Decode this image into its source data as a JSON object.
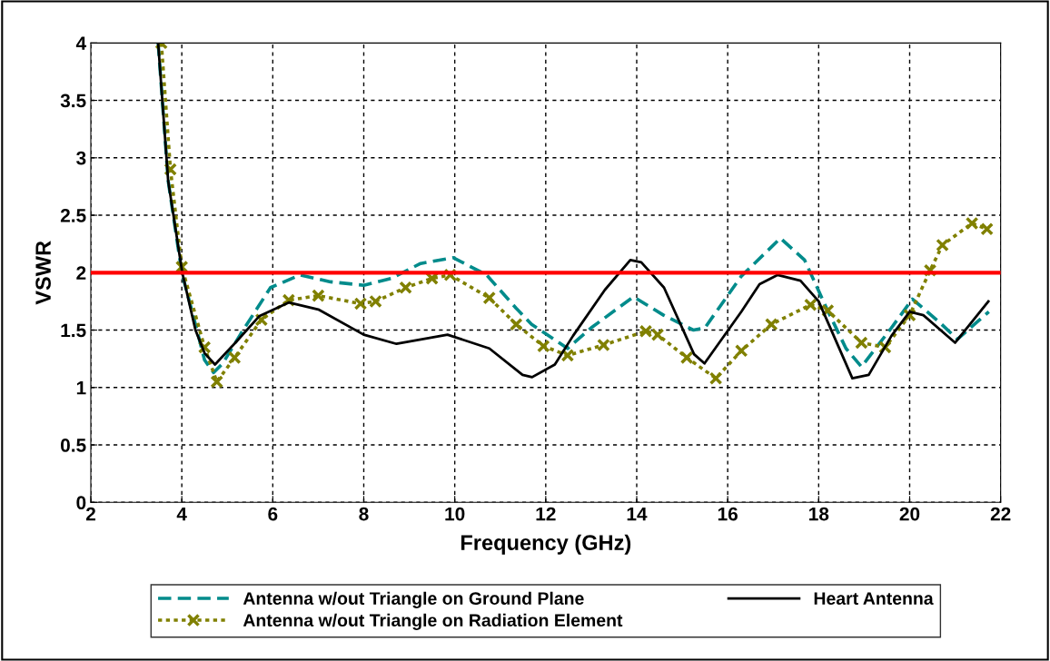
{
  "chart_data": {
    "type": "line",
    "xlabel": "Frequency (GHz)",
    "ylabel": "VSWR",
    "xlim": [
      2,
      22
    ],
    "xticks": [
      2,
      4,
      6,
      8,
      10,
      12,
      14,
      16,
      18,
      20,
      22
    ],
    "ylim": [
      0,
      4
    ],
    "yticks": [
      0,
      0.5,
      1,
      1.5,
      2,
      2.5,
      3,
      3.5,
      4
    ],
    "grid": true,
    "legend": "bottom",
    "ref_lines": [
      {
        "axis": "y",
        "value": 2,
        "color": "#ff0000",
        "line_style": "solid"
      }
    ],
    "series": [
      {
        "name": "Antenna w/out Triangle on Ground Plane",
        "color": "#008b8b",
        "line_style": "dashed",
        "marker": "none",
        "x": [
          3.48,
          3.7,
          4.0,
          4.3,
          4.5,
          4.7,
          4.9,
          5.3,
          5.95,
          6.6,
          7.27,
          8.0,
          8.6,
          9.25,
          9.97,
          10.7,
          11.35,
          11.69,
          12.48,
          13.0,
          13.93,
          14.59,
          15.25,
          15.5,
          16.3,
          17.16,
          17.69,
          18.15,
          18.6,
          18.94,
          19.6,
          20.06,
          20.65,
          21.05,
          21.74
        ],
        "values": [
          4.0,
          2.8,
          2.0,
          1.55,
          1.24,
          1.13,
          1.21,
          1.47,
          1.87,
          1.98,
          1.92,
          1.89,
          1.95,
          2.08,
          2.13,
          1.98,
          1.69,
          1.55,
          1.34,
          1.52,
          1.79,
          1.63,
          1.5,
          1.52,
          1.97,
          2.3,
          2.11,
          1.71,
          1.34,
          1.18,
          1.52,
          1.77,
          1.57,
          1.42,
          1.66
        ]
      },
      {
        "name": "Antenna w/out Triangle on Radiation Element",
        "color": "#808000",
        "line_style": "dotted",
        "marker": "cross",
        "x": [
          3.55,
          3.75,
          4.0,
          4.5,
          4.77,
          5.16,
          5.75,
          6.35,
          7.0,
          7.93,
          8.26,
          8.92,
          9.5,
          9.9,
          10.76,
          11.35,
          11.95,
          12.48,
          13.27,
          14.2,
          14.46,
          15.1,
          15.74,
          16.3,
          16.96,
          17.82,
          18.2,
          18.94,
          19.46,
          20.0,
          20.45,
          20.72,
          21.37,
          21.7
        ],
        "values": [
          4.0,
          2.9,
          2.05,
          1.35,
          1.05,
          1.26,
          1.59,
          1.76,
          1.8,
          1.73,
          1.75,
          1.87,
          1.95,
          1.98,
          1.78,
          1.55,
          1.36,
          1.28,
          1.37,
          1.49,
          1.46,
          1.26,
          1.08,
          1.32,
          1.55,
          1.72,
          1.67,
          1.39,
          1.35,
          1.63,
          2.02,
          2.24,
          2.43,
          2.38
        ]
      },
      {
        "name": "Heart Antenna",
        "color": "#000000",
        "line_style": "solid",
        "marker": "none",
        "x": [
          3.48,
          3.7,
          4.01,
          4.3,
          4.5,
          4.73,
          5.2,
          5.7,
          6.35,
          7.0,
          8.0,
          8.72,
          9.84,
          10.76,
          11.49,
          11.7,
          12.2,
          12.6,
          13.3,
          13.86,
          14.1,
          14.6,
          15.26,
          15.49,
          16.3,
          16.7,
          17.1,
          17.6,
          18.0,
          18.74,
          19.1,
          19.6,
          20.0,
          20.3,
          21.0,
          21.73
        ],
        "values": [
          4.0,
          2.8,
          2.0,
          1.5,
          1.3,
          1.2,
          1.4,
          1.62,
          1.74,
          1.68,
          1.46,
          1.38,
          1.46,
          1.34,
          1.11,
          1.09,
          1.2,
          1.45,
          1.85,
          2.11,
          2.09,
          1.87,
          1.29,
          1.21,
          1.66,
          1.9,
          1.98,
          1.93,
          1.75,
          1.08,
          1.11,
          1.45,
          1.66,
          1.63,
          1.39,
          1.75
        ]
      }
    ]
  }
}
